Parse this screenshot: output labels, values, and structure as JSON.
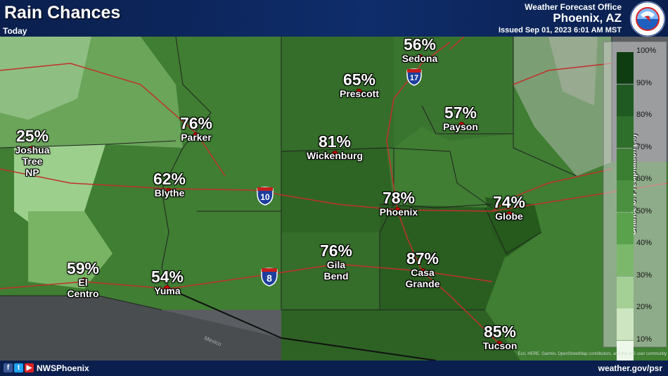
{
  "header": {
    "title": "Rain Chances",
    "subtitle": "Today",
    "office": "Weather Forecast Office",
    "city": "Phoenix, AZ",
    "issued": "Issued Sep 01, 2023 6:01 AM MST",
    "logo_text": "NATIONAL WEATHER SERVICE"
  },
  "map": {
    "locations": [
      {
        "name": "Sedona",
        "pct": "56%"
      },
      {
        "name": "Prescott",
        "pct": "65%"
      },
      {
        "name": "Payson",
        "pct": "57%"
      },
      {
        "name": "Parker",
        "pct": "76%"
      },
      {
        "name": "Wickenburg",
        "pct": "81%"
      },
      {
        "name": "Joshua Tree NP",
        "pct": "25%"
      },
      {
        "name": "Blythe",
        "pct": "62%"
      },
      {
        "name": "Phoenix",
        "pct": "78%"
      },
      {
        "name": "Globe",
        "pct": "74%"
      },
      {
        "name": "Gila Bend",
        "pct": "76%"
      },
      {
        "name": "Casa Grande",
        "pct": "87%"
      },
      {
        "name": "El Centro",
        "pct": "59%"
      },
      {
        "name": "Yuma",
        "pct": "54%"
      },
      {
        "name": "Tucson",
        "pct": "85%"
      }
    ],
    "highway_shields": [
      "17",
      "10",
      "8"
    ],
    "country_label": "Mexico",
    "credit": "Esri, HERE, Garmin, OpenStreetMap contributors, and the GIS user community"
  },
  "legend": {
    "title": "Chance of Precipitation (%)",
    "levels": [
      "100%",
      "90%",
      "80%",
      "70%",
      "60%",
      "50%",
      "40%",
      "30%",
      "20%",
      "10%"
    ],
    "colors": [
      "#0f3d12",
      "#1f5a22",
      "#2e6f2b",
      "#3a7f32",
      "#4a9040",
      "#5aa34c",
      "#7bb86c",
      "#a4cf95",
      "#cde6c1",
      "#eef8ea"
    ]
  },
  "footer": {
    "handle": "NWSPhoenix",
    "website": "weather.gov/psr"
  }
}
